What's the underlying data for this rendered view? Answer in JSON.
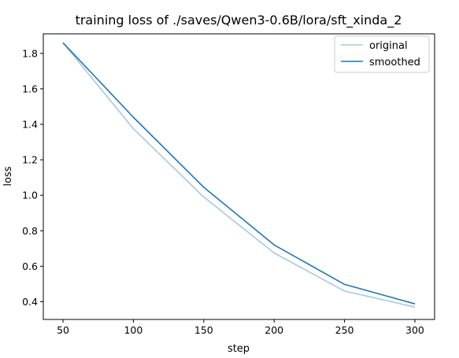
{
  "chart_data": {
    "type": "line",
    "title": "training loss of ./saves/Qwen3-0.6B/lora/sft_xinda_2",
    "xlabel": "step",
    "ylabel": "loss",
    "xlim": [
      36,
      314
    ],
    "ylim": [
      0.3,
      1.91
    ],
    "xticks": [
      50,
      100,
      150,
      200,
      250,
      300
    ],
    "yticks": [
      0.4,
      0.6,
      0.8,
      1.0,
      1.2,
      1.4,
      1.6,
      1.8
    ],
    "grid": false,
    "legend_position": "top-right",
    "series": [
      {
        "name": "original",
        "color": "#a6c8e0",
        "x": [
          50,
          100,
          150,
          200,
          250,
          300
        ],
        "y": [
          1.86,
          1.375,
          0.99,
          0.675,
          0.46,
          0.37
        ]
      },
      {
        "name": "smoothed",
        "color": "#1f77b4",
        "x": [
          50,
          100,
          150,
          200,
          250,
          300
        ],
        "y": [
          1.86,
          1.44,
          1.045,
          0.72,
          0.498,
          0.388
        ]
      }
    ]
  }
}
